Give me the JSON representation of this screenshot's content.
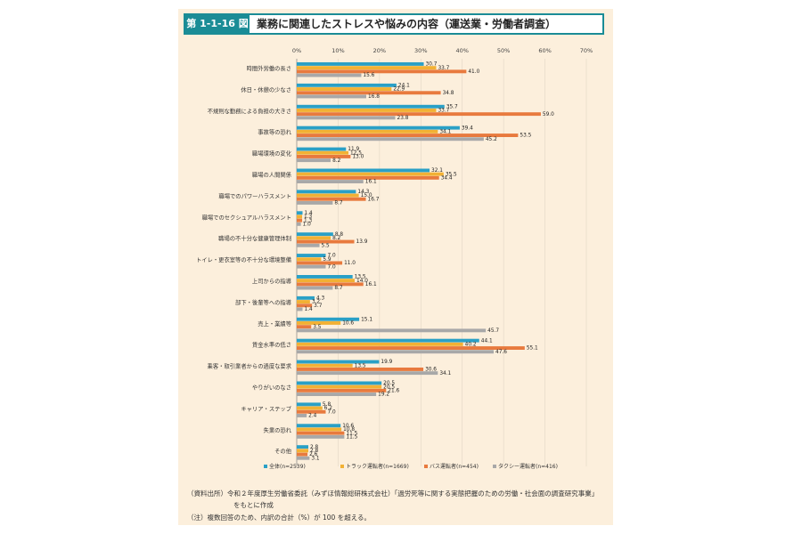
{
  "figure": {
    "number": "第 1-1-16 図",
    "title": "業務に関連したストレスや悩みの内容（運送業・労働者調査）"
  },
  "notes": {
    "source_line1": "（資料出所）令和２年度厚生労働省委託（みずほ情報総研株式会社）「過労死等に関する実態把握のための労働・社会面の調査研究事業」",
    "source_line2": "をもとに作成",
    "note": "（注）複数回答のため、内訳の合計（%）が 100 を超える。"
  },
  "colors": {
    "series": [
      "#2aa0c6",
      "#f2b134",
      "#e87a3e",
      "#a8a8a8"
    ],
    "panel": "#fcefdc",
    "accent": "#1a8c96"
  },
  "chart_data": {
    "type": "bar",
    "orientation": "horizontal",
    "categories": [
      "時間外労働の長さ",
      "休日・休憩の少なさ",
      "不規則な勤務による負担の大きさ",
      "事故等の恐れ",
      "職場環境の変化",
      "職場の人間関係",
      "職場でのパワーハラスメント",
      "職場でのセクシュアルハラスメント",
      "職場の不十分な健康管理体制",
      "トイレ・更衣室等の不十分な環境整備",
      "上司からの指導",
      "部下・後輩等への指導",
      "売上・業績等",
      "賃金水準の低さ",
      "乗客・取引業者からの過度な要求",
      "やりがいのなさ",
      "キャリア・ステップ",
      "失業の恐れ",
      "その他"
    ],
    "series": [
      {
        "name": "全体(n=2539)",
        "values": [
          30.7,
          24.1,
          35.7,
          39.4,
          11.9,
          32.1,
          14.3,
          1.4,
          8.8,
          7.0,
          13.5,
          4.3,
          15.1,
          44.1,
          19.9,
          20.5,
          5.8,
          10.6,
          2.8
        ]
      },
      {
        "name": "トラック運転者(n=1669)",
        "values": [
          33.7,
          22.9,
          33.7,
          34.1,
          12.5,
          35.5,
          15.0,
          1.3,
          8.2,
          5.9,
          14.0,
          3.2,
          10.6,
          40.2,
          13.5,
          20.5,
          6.2,
          10.8,
          2.8
        ]
      },
      {
        "name": "バス運転者(n=454)",
        "values": [
          41.0,
          34.8,
          59.0,
          53.5,
          13.0,
          34.4,
          16.7,
          1.3,
          13.9,
          11.0,
          16.1,
          3.7,
          3.5,
          55.1,
          30.6,
          21.6,
          7.0,
          11.5,
          2.6
        ]
      },
      {
        "name": "タクシー運転者(n=416)",
        "values": [
          15.6,
          16.8,
          23.8,
          45.2,
          8.2,
          16.1,
          8.7,
          1.0,
          5.5,
          7.0,
          8.7,
          1.4,
          45.7,
          47.6,
          34.1,
          19.2,
          2.4,
          11.5,
          3.1
        ]
      }
    ],
    "xticks": [
      "0%",
      "10%",
      "20%",
      "30%",
      "40%",
      "50%",
      "60%",
      "70%"
    ],
    "xlim": [
      0,
      70
    ],
    "legend_position": "bottom",
    "grid": true
  }
}
